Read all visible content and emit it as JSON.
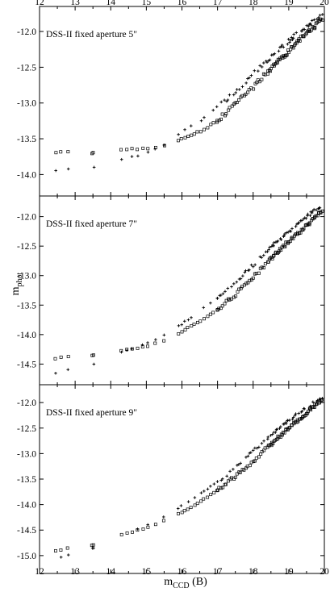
{
  "chart_data": {
    "type": "scatter",
    "xlabel": "m_CCD (B)",
    "xlabel_main": "m",
    "xlabel_sub": "CCD",
    "xlabel_suffix": " (B)",
    "ylabel": "m_phot",
    "ylabel_main": "m",
    "ylabel_sub": "phot",
    "xlim": [
      12,
      20
    ],
    "xticks": [
      "12",
      "13",
      "14",
      "15",
      "16",
      "17",
      "18",
      "19",
      "20"
    ],
    "grid": false,
    "panels": [
      {
        "title": "DSS-II fixed aperture 5\"",
        "ylim": [
          -14.3,
          -11.65
        ],
        "yticks": [
          "-14.0",
          "-13.5",
          "-13.0",
          "-12.5",
          "-12.0"
        ],
        "ytick_values": [
          -14.0,
          -13.5,
          -13.0,
          -12.5,
          -12.0
        ],
        "squares_anchor": {
          "x": [
            12.4,
            13.5,
            14.3,
            15.0,
            15.5,
            16.0,
            16.5,
            17.0,
            17.5,
            18.0,
            18.5,
            19.0,
            19.5,
            19.9
          ],
          "y": [
            -13.68,
            -13.7,
            -13.66,
            -13.63,
            -13.6,
            -13.5,
            -13.4,
            -13.25,
            -13.02,
            -12.78,
            -12.52,
            -12.28,
            -12.02,
            -11.85
          ]
        },
        "crosses_anchor": {
          "x": [
            12.4,
            13.5,
            14.3,
            15.0,
            15.5,
            16.0,
            16.5,
            17.0,
            17.5,
            18.0,
            18.5,
            19.0,
            19.5,
            19.9
          ],
          "y": [
            -13.94,
            -13.9,
            -13.8,
            -13.7,
            -13.58,
            -13.4,
            -13.25,
            -13.05,
            -12.85,
            -12.6,
            -12.36,
            -12.13,
            -11.92,
            -11.78
          ]
        }
      },
      {
        "title": "DSS-II fixed aperture 7\"",
        "ylim": [
          -14.85,
          -11.65
        ],
        "yticks": [
          "-14.5",
          "-14.0",
          "-13.5",
          "-13.0",
          "-12.5",
          "-12.0"
        ],
        "ytick_values": [
          -14.5,
          -14.0,
          -13.5,
          -13.0,
          -12.5,
          -12.0
        ],
        "squares_anchor": {
          "x": [
            12.4,
            13.5,
            14.3,
            15.0,
            15.5,
            16.0,
            16.5,
            17.0,
            17.5,
            18.0,
            18.5,
            19.0,
            19.5,
            19.9
          ],
          "y": [
            -14.4,
            -14.35,
            -14.28,
            -14.2,
            -14.1,
            -13.95,
            -13.78,
            -13.58,
            -13.32,
            -13.02,
            -12.72,
            -12.42,
            -12.15,
            -11.92
          ]
        },
        "crosses_anchor": {
          "x": [
            12.4,
            13.5,
            14.3,
            15.0,
            15.5,
            16.0,
            16.5,
            17.0,
            17.5,
            18.0,
            18.5,
            19.0,
            19.5,
            19.9
          ],
          "y": [
            -14.65,
            -14.5,
            -14.3,
            -14.15,
            -14.0,
            -13.82,
            -13.6,
            -13.38,
            -13.12,
            -12.82,
            -12.52,
            -12.25,
            -12.0,
            -11.82
          ]
        }
      },
      {
        "title": "DSS-II fixed aperture 9\"",
        "ylim": [
          -15.35,
          -11.65
        ],
        "yticks": [
          "-15.0",
          "-14.5",
          "-14.0",
          "-13.5",
          "-13.0",
          "-12.5",
          "-12.0"
        ],
        "ytick_values": [
          -15.0,
          -14.5,
          -14.0,
          -13.5,
          -13.0,
          -12.5,
          -12.0
        ],
        "squares_anchor": {
          "x": [
            12.4,
            13.5,
            14.3,
            15.0,
            15.5,
            16.0,
            16.5,
            17.0,
            17.5,
            18.0,
            18.5,
            19.0,
            19.5,
            19.9
          ],
          "y": [
            -14.9,
            -14.8,
            -14.6,
            -14.45,
            -14.32,
            -14.15,
            -13.95,
            -13.72,
            -13.45,
            -13.15,
            -12.82,
            -12.5,
            -12.2,
            -11.95
          ]
        },
        "crosses_anchor": {
          "x": [
            12.4,
            13.5,
            14.3,
            15.0,
            15.5,
            16.0,
            16.5,
            17.0,
            17.5,
            18.0,
            18.5,
            19.0,
            19.5,
            19.9
          ],
          "y": [
            -15.08,
            -14.85,
            -14.6,
            -14.42,
            -14.25,
            -14.02,
            -13.78,
            -13.55,
            -13.28,
            -12.95,
            -12.65,
            -12.35,
            -12.1,
            -11.9
          ]
        }
      }
    ]
  }
}
